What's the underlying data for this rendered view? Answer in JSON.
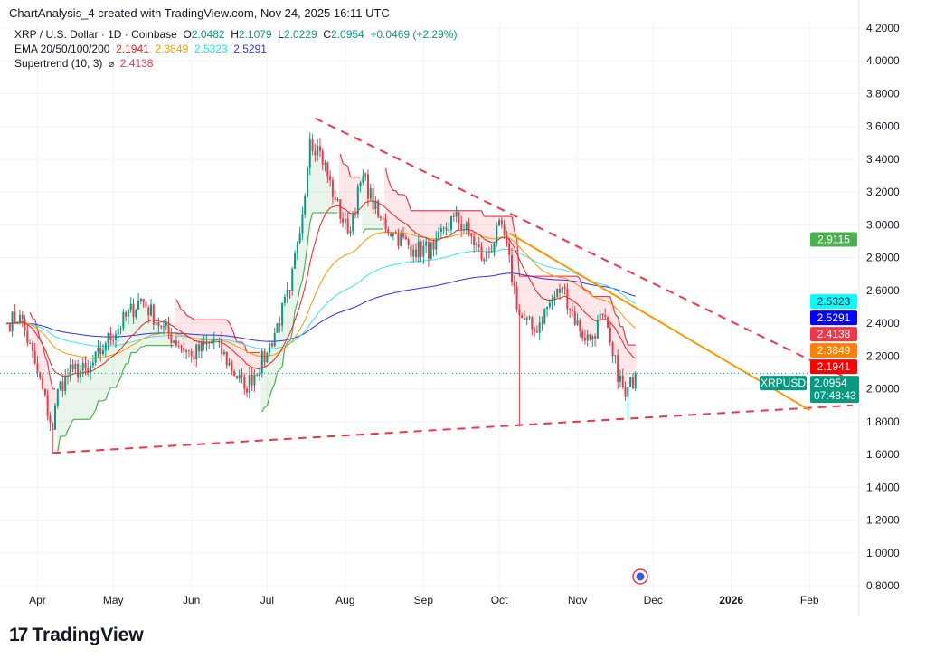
{
  "header": {
    "credit": "ChartAnalysis_4 created with TradingView.com, Nov 24, 2025 16:11 UTC"
  },
  "legend": {
    "symbol": "XRP / U.S. Dollar · 1D · Coinbase",
    "o_label": "O",
    "o": "2.0482",
    "h_label": "H",
    "h": "2.1079",
    "l_label": "L",
    "l": "2.0229",
    "c_label": "C",
    "c": "2.0954",
    "change": "+0.0469 (+2.29%)",
    "ema_label": "EMA 20/50/100/200",
    "ema20": "2.1941",
    "ema50": "2.3849",
    "ema100": "2.5323",
    "ema200": "2.5291",
    "st_label": "Supertrend (10, 3)",
    "st_icon": "⌀",
    "st": "2.4138"
  },
  "colors": {
    "up": "#089981",
    "down": "#f23645",
    "ema20": "#ff1a1a",
    "ema50": "#ff9800",
    "ema100": "#34e8f0",
    "ema200": "#3030f0",
    "st_up": "#4caf50",
    "st_down": "#f23645"
  },
  "price_labels": [
    {
      "text": "2.9115",
      "value": 2.9115,
      "color": "#4caf50"
    },
    {
      "text": "2.5323",
      "value": 2.5323,
      "color": "#00ffff",
      "dark": true
    },
    {
      "text": "2.5291",
      "value": 2.5291,
      "color": "#0000ff"
    },
    {
      "text": "2.4138",
      "value": 2.4138,
      "color": "#f23645"
    },
    {
      "text": "2.3849",
      "value": 2.3849,
      "color": "#ff8000"
    },
    {
      "text": "2.1941",
      "value": 2.1941,
      "color": "#ff0000"
    }
  ],
  "current": {
    "symbol": "XRPUSD",
    "price": "2.0954",
    "countdown": "07:48:43",
    "value": 2.0954
  },
  "logo": {
    "text": "TradingView"
  },
  "chart_data": {
    "type": "candlestick",
    "title": "XRP / U.S. Dollar · 1D · Coinbase",
    "ylim": [
      0.8,
      4.2
    ],
    "y_ticks": [
      "4.2000",
      "4.0000",
      "3.8000",
      "3.6000",
      "3.4000",
      "3.2000",
      "3.0000",
      "2.8000",
      "2.6000",
      "2.4000",
      "2.2000",
      "2.0000",
      "1.8000",
      "1.6000",
      "1.4000",
      "1.2000",
      "1.0000",
      "0.8000"
    ],
    "x_ticks": [
      {
        "label": "Apr",
        "day": 12
      },
      {
        "label": "May",
        "day": 42
      },
      {
        "label": "Jun",
        "day": 73
      },
      {
        "label": "Jul",
        "day": 103
      },
      {
        "label": "Aug",
        "day": 134
      },
      {
        "label": "Sep",
        "day": 165
      },
      {
        "label": "Oct",
        "day": 195
      },
      {
        "label": "Nov",
        "day": 226
      },
      {
        "label": "Dec",
        "day": 256
      },
      {
        "label": "2026",
        "day": 287,
        "bold": true
      },
      {
        "label": "Feb",
        "day": 318
      }
    ],
    "start_date": "Mar 20, 2025",
    "price_path": [
      [
        0,
        2.4
      ],
      [
        5,
        2.45
      ],
      [
        12,
        2.1
      ],
      [
        18,
        1.75
      ],
      [
        20,
        2.0
      ],
      [
        26,
        2.12
      ],
      [
        32,
        2.1
      ],
      [
        39,
        2.28
      ],
      [
        53,
        2.55
      ],
      [
        61,
        2.38
      ],
      [
        73,
        2.2
      ],
      [
        82,
        2.3
      ],
      [
        94,
        2.0
      ],
      [
        103,
        2.22
      ],
      [
        112,
        2.6
      ],
      [
        116,
        2.95
      ],
      [
        120,
        3.52
      ],
      [
        124,
        3.45
      ],
      [
        130,
        3.15
      ],
      [
        135,
        2.95
      ],
      [
        141,
        3.3
      ],
      [
        147,
        3.05
      ],
      [
        153,
        2.95
      ],
      [
        161,
        2.85
      ],
      [
        169,
        2.85
      ],
      [
        177,
        3.05
      ],
      [
        183,
        2.95
      ],
      [
        189,
        2.78
      ],
      [
        196,
        3.0
      ],
      [
        203,
        2.45
      ],
      [
        209,
        2.35
      ],
      [
        214,
        2.5
      ],
      [
        220,
        2.62
      ],
      [
        227,
        2.35
      ],
      [
        231,
        2.3
      ],
      [
        236,
        2.45
      ],
      [
        240,
        2.2
      ],
      [
        245,
        1.95
      ],
      [
        249,
        2.0954
      ]
    ],
    "special_lows": [
      [
        18,
        1.61
      ],
      [
        203,
        1.77
      ],
      [
        246,
        1.81
      ]
    ],
    "trendlines": [
      {
        "name": "support",
        "style": "dashed",
        "color": "#f23645",
        "from": [
          18,
          1.61
        ],
        "to": [
          335,
          1.9
        ]
      },
      {
        "name": "resistance",
        "style": "dashed",
        "color": "#f23645",
        "from": [
          122,
          3.65
        ],
        "to": [
          335,
          2.05
        ]
      },
      {
        "name": "projection",
        "style": "solid",
        "color": "#ff9800",
        "from": [
          199,
          2.95
        ],
        "to": [
          318,
          1.87
        ]
      }
    ],
    "ema_periods": [
      20,
      50,
      100,
      200
    ],
    "supertrend": {
      "period": 10,
      "multiplier": 3
    }
  }
}
